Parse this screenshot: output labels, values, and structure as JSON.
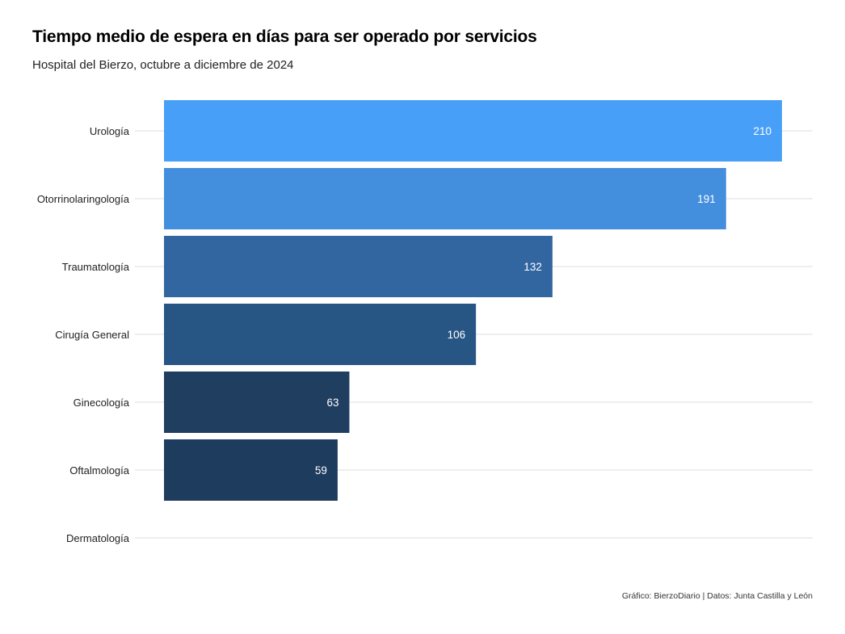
{
  "chart_data": {
    "type": "bar",
    "orientation": "horizontal",
    "title": "Tiempo medio de espera en días para ser operado por servicios",
    "subtitle": "Hospital del Bierzo, octubre a diciembre de 2024",
    "caption": "Gráfico: BierzoDiario | Datos: Junta Castilla y León",
    "categories": [
      "Urología",
      "Otorrinolaringología",
      "Traumatología",
      "Cirugía General",
      "Ginecología",
      "Oftalmología",
      "Dermatología"
    ],
    "values": [
      210,
      191,
      132,
      106,
      63,
      59,
      0
    ],
    "value_labels": [
      "210",
      "191",
      "132",
      "106",
      "63",
      "59",
      ""
    ],
    "bar_colors": [
      "#489ff8",
      "#438fdd",
      "#3266a0",
      "#275584",
      "#1f3e60",
      "#1e3c5e",
      "#1e3c5e"
    ],
    "label_color": "#ffffff",
    "gridline_color": "#dddddd",
    "xlim": [
      0,
      220
    ],
    "xlabel": "",
    "ylabel": "",
    "grid": "horizontal",
    "legend": "none"
  }
}
